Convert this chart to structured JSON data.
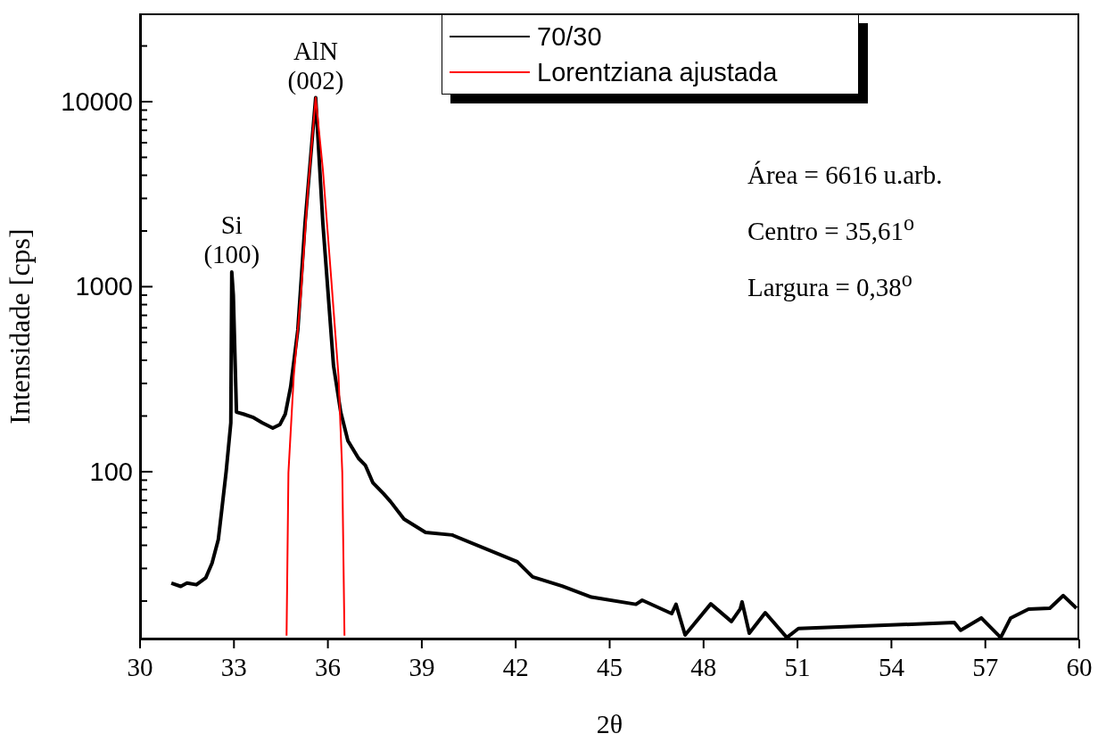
{
  "chart_data": {
    "type": "line",
    "xlabel": "2θ",
    "ylabel": "Intensidade [cps]",
    "log": "y",
    "legend": "top",
    "grid": false,
    "xlim": [
      30,
      60
    ],
    "xticks": [
      30,
      33,
      36,
      39,
      42,
      45,
      48,
      51,
      54,
      57,
      60
    ],
    "ylim": [
      12.4,
      30000
    ],
    "yticks": [
      {
        "value": 20,
        "label": null
      },
      {
        "value": 30,
        "label": null
      },
      {
        "value": 40,
        "label": null
      },
      {
        "value": 50,
        "label": null
      },
      {
        "value": 60,
        "label": null
      },
      {
        "value": 70,
        "label": null
      },
      {
        "value": 80,
        "label": null
      },
      {
        "value": 90,
        "label": null
      },
      100,
      {
        "value": 200,
        "label": null
      },
      {
        "value": 300,
        "label": null
      },
      {
        "value": 400,
        "label": null
      },
      {
        "value": 500,
        "label": null
      },
      {
        "value": 600,
        "label": null
      },
      {
        "value": 700,
        "label": null
      },
      {
        "value": 800,
        "label": null
      },
      {
        "value": 900,
        "label": null
      },
      1000,
      {
        "value": 2000,
        "label": null
      },
      {
        "value": 3000,
        "label": null
      },
      {
        "value": 4000,
        "label": null
      },
      {
        "value": 5000,
        "label": null
      },
      {
        "value": 6000,
        "label": null
      },
      {
        "value": 7000,
        "label": null
      },
      {
        "value": 8000,
        "label": null
      },
      {
        "value": 9000,
        "label": null
      },
      10000,
      {
        "value": 20000,
        "label": null
      }
    ],
    "series": [
      {
        "name": "70/30",
        "color": "#000000",
        "x": [
          31.0,
          31.3,
          31.5,
          31.8,
          32.1,
          32.3,
          32.5,
          32.6,
          32.75,
          32.9,
          32.93,
          32.98,
          33.08,
          33.3,
          33.6,
          33.9,
          34.24,
          34.47,
          34.64,
          34.81,
          35.04,
          35.27,
          35.61,
          35.84,
          36.18,
          36.41,
          36.64,
          36.98,
          37.2,
          37.44,
          37.78,
          38.0,
          38.43,
          39.12,
          39.97,
          42.05,
          42.54,
          43.48,
          44.42,
          45.84,
          46.04,
          46.98,
          47.12,
          47.41,
          48.23,
          48.89,
          49.17,
          49.23,
          49.46,
          49.97,
          50.66,
          51.03,
          56.01,
          56.21,
          56.87,
          57.49,
          57.81,
          58.38,
          59.06,
          59.49,
          59.91
        ],
        "values": [
          25,
          24,
          25,
          24.5,
          26.7,
          32,
          43,
          60,
          100,
          184,
          1200,
          900,
          210,
          205,
          197,
          184,
          172,
          180,
          205,
          287,
          584,
          2200,
          10500,
          2200,
          374,
          210,
          147,
          118,
          108,
          87,
          76,
          69,
          55.5,
          47,
          45.5,
          32.6,
          27,
          24.1,
          21,
          19.2,
          20.2,
          17.1,
          19.2,
          13.1,
          19.3,
          15.5,
          18.1,
          19.8,
          13.4,
          17.3,
          12.7,
          14.2,
          15.3,
          13.9,
          16.2,
          12.7,
          16.2,
          18.1,
          18.3,
          21.4,
          18.3
        ]
      },
      {
        "name": "Lorentziana ajustada",
        "color": "#ff0000",
        "x": [
          34.68,
          34.74,
          34.91,
          35.14,
          35.37,
          35.61,
          35.84,
          36.11,
          36.34,
          36.46,
          36.53
        ],
        "values": [
          13,
          99,
          328,
          910,
          3450,
          10500,
          4300,
          1085,
          328,
          99,
          13
        ]
      }
    ],
    "annotations": [
      {
        "text": "Si\n(100)",
        "x": 32.93,
        "y": 1200
      },
      {
        "text": "AlN\n(002)",
        "x": 35.61,
        "y": 10500
      },
      "Área = 6616 u.arb.",
      "Centro = 35,61$^{o}$",
      "Largura = 0,38$^{o}$"
    ]
  }
}
